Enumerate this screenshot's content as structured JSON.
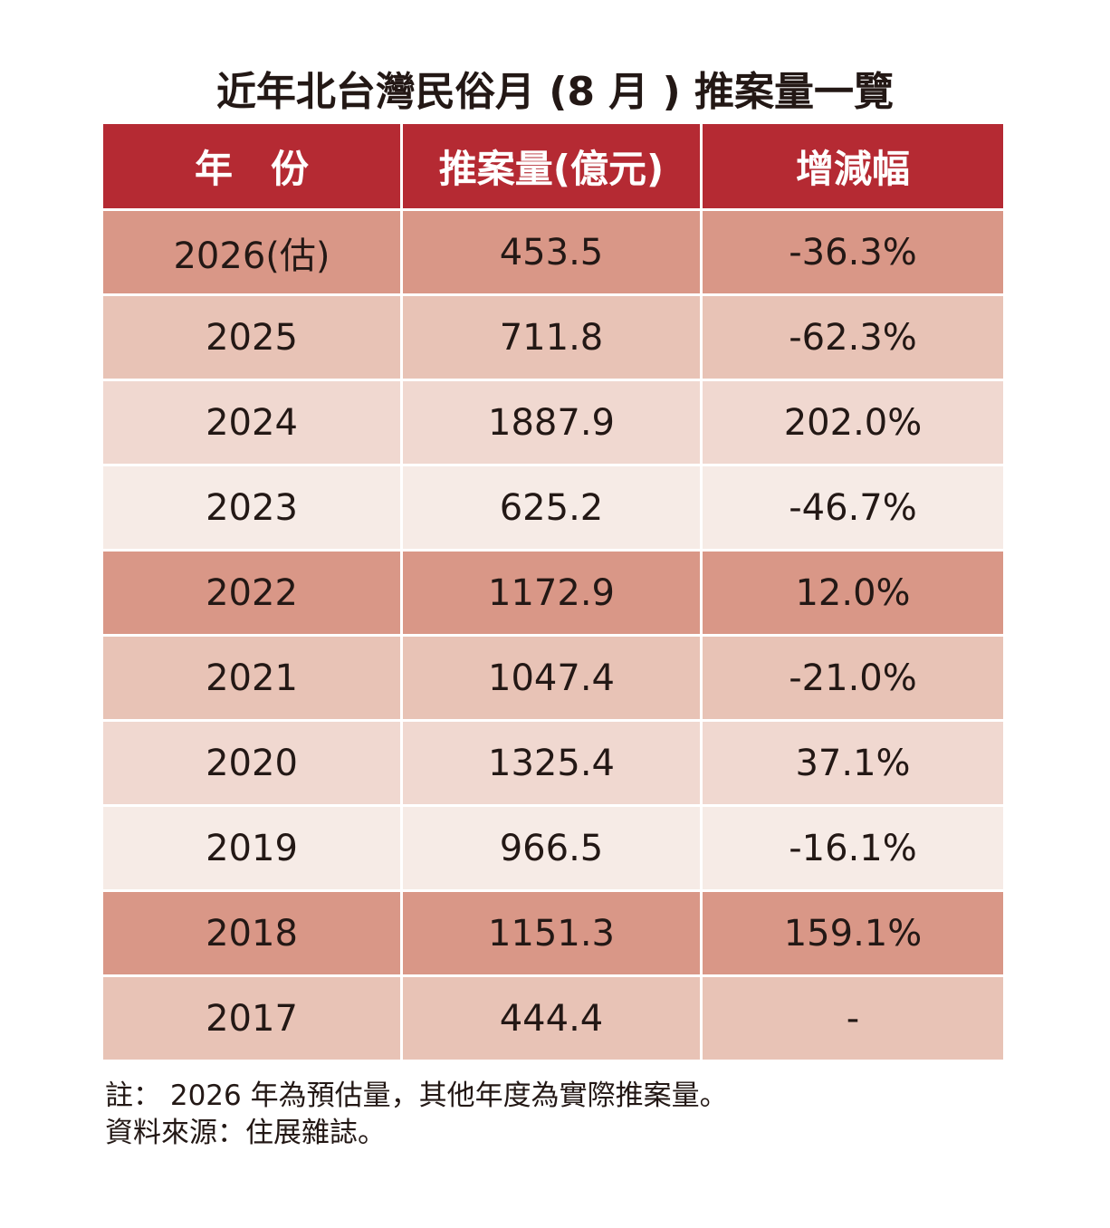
{
  "title": "近年北台灣民俗月 (8 月 ) 推案量一覽",
  "table": {
    "headers": [
      "年　份",
      "推案量(億元)",
      "增減幅"
    ],
    "rows": [
      {
        "year": "2026(估)",
        "value": "453.5",
        "change": "-36.3%"
      },
      {
        "year": "2025",
        "value": "711.8",
        "change": "-62.3%"
      },
      {
        "year": "2024",
        "value": "1887.9",
        "change": "202.0%"
      },
      {
        "year": "2023",
        "value": "625.2",
        "change": "-46.7%"
      },
      {
        "year": "2022",
        "value": "1172.9",
        "change": "12.0%"
      },
      {
        "year": "2021",
        "value": "1047.4",
        "change": "-21.0%"
      },
      {
        "year": "2020",
        "value": "1325.4",
        "change": "37.1%"
      },
      {
        "year": "2019",
        "value": "966.5",
        "change": "-16.1%"
      },
      {
        "year": "2018",
        "value": "1151.3",
        "change": "159.1%"
      },
      {
        "year": "2017",
        "value": "444.4",
        "change": "-"
      }
    ]
  },
  "note": "註： 2026 年為預估量，其他年度為實際推案量。",
  "source": "資料來源：住展雜誌。",
  "colors": {
    "header_bg": "#b52a33",
    "header_text": "#ffffff",
    "row_shades": [
      "#d99787",
      "#e8c3b6",
      "#f0d8d0",
      "#f6ebe6"
    ],
    "text": "#231815"
  },
  "chart_data": {
    "type": "table",
    "title": "近年北台灣民俗月 (8 月 ) 推案量一覽",
    "columns": [
      "年　份",
      "推案量(億元)",
      "增減幅"
    ],
    "categories": [
      "2026(估)",
      "2025",
      "2024",
      "2023",
      "2022",
      "2021",
      "2020",
      "2019",
      "2018",
      "2017"
    ],
    "series": [
      {
        "name": "推案量(億元)",
        "values": [
          453.5,
          711.8,
          1887.9,
          625.2,
          1172.9,
          1047.4,
          1325.4,
          966.5,
          1151.3,
          444.4
        ]
      },
      {
        "name": "增減幅",
        "values": [
          -36.3,
          -62.3,
          202.0,
          -46.7,
          12.0,
          -21.0,
          37.1,
          -16.1,
          159.1,
          null
        ]
      }
    ]
  }
}
